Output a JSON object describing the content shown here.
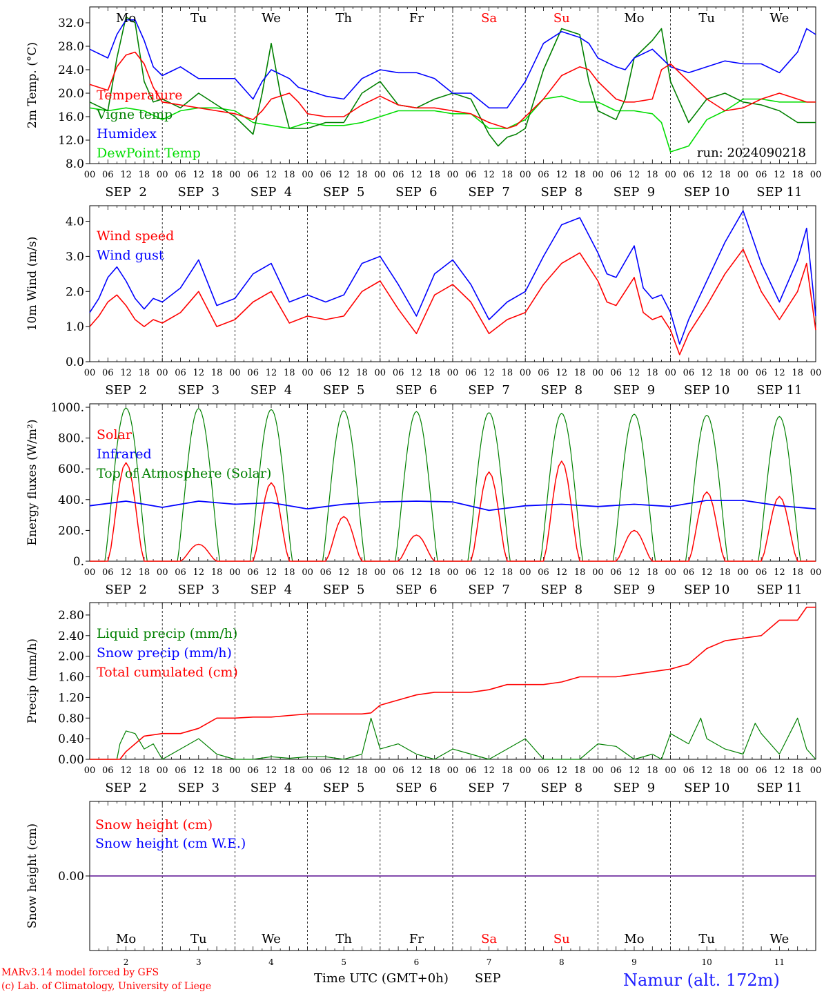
{
  "colors": {
    "temperature": "#ff0000",
    "vigne": "#008000",
    "humidex": "#0000ff",
    "dewpoint": "#00dd00",
    "solar": "#ff0000",
    "infrared": "#0000ff",
    "toa": "#008000",
    "liquid": "#008000",
    "snow": "#0000ff",
    "total": "#ff0000",
    "snow_height_line": "#7030a0",
    "weekend": "#ff0000",
    "location": "#2020ff"
  },
  "days": {
    "names": [
      "Mo",
      "Tu",
      "We",
      "Th",
      "Fr",
      "Sa",
      "Su",
      "Mo",
      "Tu",
      "We"
    ],
    "weekend_flags": [
      false,
      false,
      false,
      false,
      false,
      true,
      true,
      false,
      false,
      false
    ],
    "dates": [
      "SEP  2",
      "SEP  3",
      "SEP  4",
      "SEP  5",
      "SEP  6",
      "SEP  7",
      "SEP  8",
      "SEP  9",
      "SEP 10",
      "SEP 11"
    ],
    "numbers": [
      "2",
      "3",
      "4",
      "5",
      "6",
      "7",
      "8",
      "9",
      "10",
      "11"
    ],
    "hour_labels": [
      "00",
      "06",
      "12",
      "18"
    ],
    "end_label": "00"
  },
  "footer": {
    "model": "MARv3.14 model forced by GFS",
    "lab": "(c) Lab. of Climatology, University of Liege",
    "axis": "Time UTC (GMT+0h)",
    "month": "SEP",
    "location": "Namur (alt. 172m)"
  },
  "chart_data": [
    {
      "type": "line",
      "ylabel": "2m Temp. (°C)",
      "ylim": [
        8,
        34
      ],
      "yticks": [
        "8.0",
        "12.0",
        "16.0",
        "20.0",
        "24.0",
        "28.0",
        "32.0"
      ],
      "annotation": "run: 2024090218",
      "x_unit": "hours since SEP 2 00 UTC",
      "series": [
        {
          "name": "Temperature",
          "x": [
            0,
            6,
            9,
            12,
            15,
            18,
            21,
            24,
            30,
            36,
            42,
            48,
            54,
            57,
            60,
            66,
            69,
            72,
            78,
            84,
            90,
            96,
            102,
            108,
            114,
            120,
            126,
            132,
            138,
            141,
            144,
            150,
            156,
            162,
            165,
            168,
            174,
            177,
            180,
            186,
            189,
            192,
            198,
            204,
            210,
            216,
            222,
            228,
            234,
            237,
            240
          ],
          "y": [
            21.5,
            20.5,
            24.5,
            26.5,
            27,
            25,
            21,
            18.5,
            18,
            17.5,
            17,
            16.5,
            15.5,
            17,
            19,
            20,
            18.5,
            16.5,
            16,
            16,
            18,
            19.5,
            18,
            17.5,
            17.5,
            17,
            16.5,
            15,
            14,
            14.5,
            16,
            19,
            23,
            24.5,
            24,
            22,
            19,
            18.5,
            18.5,
            19,
            24,
            25,
            22,
            19,
            17,
            17.5,
            19,
            20,
            19,
            18.5,
            18.5
          ]
        },
        {
          "name": "Vigne temp",
          "x": [
            0,
            6,
            9,
            12,
            15,
            18,
            21,
            24,
            30,
            36,
            42,
            48,
            54,
            57,
            60,
            63,
            66,
            72,
            78,
            84,
            90,
            96,
            102,
            108,
            114,
            120,
            126,
            132,
            135,
            138,
            141,
            144,
            150,
            156,
            162,
            165,
            168,
            174,
            177,
            180,
            186,
            189,
            192,
            198,
            204,
            210,
            216,
            222,
            228,
            234,
            237,
            240
          ],
          "y": [
            18.5,
            17,
            26,
            33,
            32,
            22,
            18.5,
            19,
            17.5,
            20,
            18,
            16,
            13,
            20,
            28.5,
            20,
            14,
            14,
            15,
            15,
            20,
            22,
            18,
            17.5,
            19,
            20,
            19,
            13,
            11,
            12.5,
            13,
            14,
            24,
            31,
            30,
            22,
            17,
            15.5,
            19,
            26,
            29,
            31,
            22,
            15,
            19,
            20,
            18.5,
            18,
            17,
            15,
            15,
            15
          ]
        },
        {
          "name": "Humidex",
          "x": [
            0,
            6,
            9,
            12,
            15,
            18,
            21,
            24,
            30,
            36,
            42,
            48,
            54,
            57,
            60,
            66,
            69,
            72,
            78,
            84,
            90,
            96,
            102,
            108,
            114,
            120,
            126,
            132,
            135,
            138,
            144,
            150,
            156,
            162,
            165,
            168,
            174,
            177,
            180,
            186,
            189,
            192,
            198,
            204,
            210,
            216,
            222,
            228,
            234,
            237,
            240
          ],
          "y": [
            27.5,
            26,
            30,
            32.5,
            32.5,
            29,
            24.5,
            23,
            24.5,
            22.5,
            22.5,
            22.5,
            19,
            22,
            24,
            22.5,
            21,
            20.5,
            19.5,
            19,
            22.5,
            24,
            23.5,
            23.5,
            22.5,
            20,
            20,
            17.5,
            17.5,
            17.5,
            22,
            28.5,
            30.5,
            29.5,
            28.5,
            26,
            24.5,
            24,
            26,
            27.5,
            26,
            24.5,
            23.5,
            24.5,
            25.5,
            25,
            25,
            23.5,
            27,
            31,
            30
          ]
        },
        {
          "name": "DewPoint Temp",
          "x": [
            0,
            6,
            12,
            18,
            24,
            30,
            36,
            42,
            48,
            54,
            60,
            66,
            72,
            78,
            84,
            90,
            96,
            102,
            108,
            114,
            120,
            126,
            132,
            138,
            144,
            150,
            156,
            162,
            168,
            174,
            180,
            186,
            189,
            192,
            195,
            198,
            204,
            210,
            216,
            222,
            228,
            234,
            240
          ],
          "y": [
            17.5,
            17,
            17.5,
            17,
            15.5,
            17,
            17.5,
            17.5,
            17,
            15,
            14.5,
            14,
            15,
            14.5,
            14.5,
            15,
            16,
            17,
            17,
            17,
            16.5,
            16.5,
            14,
            14,
            15.5,
            19,
            19.5,
            18.5,
            18.5,
            17,
            17,
            16.5,
            15,
            10,
            10.5,
            11,
            15.5,
            17,
            19,
            19,
            18.5,
            18.5,
            18.5
          ]
        }
      ]
    },
    {
      "type": "line",
      "ylabel": "10m Wind (m/s)",
      "ylim": [
        0,
        4.6
      ],
      "yticks": [
        "0.0",
        "1.0",
        "2.0",
        "3.0",
        "4.0"
      ],
      "x_unit": "hours since SEP 2 00 UTC",
      "series": [
        {
          "name": "Wind speed",
          "x": [
            0,
            3,
            6,
            9,
            12,
            15,
            18,
            21,
            24,
            30,
            36,
            42,
            48,
            54,
            60,
            66,
            72,
            78,
            84,
            90,
            96,
            102,
            108,
            114,
            120,
            126,
            132,
            138,
            144,
            150,
            156,
            162,
            168,
            171,
            174,
            180,
            183,
            186,
            189,
            192,
            195,
            198,
            204,
            210,
            216,
            222,
            228,
            234,
            237,
            240
          ],
          "y": [
            1.0,
            1.3,
            1.7,
            1.9,
            1.6,
            1.2,
            1.0,
            1.2,
            1.1,
            1.4,
            2.0,
            1.0,
            1.2,
            1.7,
            2.0,
            1.1,
            1.3,
            1.2,
            1.3,
            2.0,
            2.3,
            1.5,
            0.8,
            1.9,
            2.2,
            1.7,
            0.8,
            1.2,
            1.4,
            2.2,
            2.8,
            3.1,
            2.3,
            1.7,
            1.6,
            2.4,
            1.4,
            1.2,
            1.3,
            0.9,
            0.2,
            0.8,
            1.6,
            2.5,
            3.2,
            2.0,
            1.2,
            2.0,
            2.8,
            0.9
          ]
        },
        {
          "name": "Wind gust",
          "x": [
            0,
            3,
            6,
            9,
            12,
            15,
            18,
            21,
            24,
            30,
            36,
            42,
            48,
            54,
            60,
            66,
            72,
            78,
            84,
            90,
            96,
            102,
            108,
            114,
            120,
            126,
            132,
            138,
            144,
            150,
            156,
            162,
            168,
            171,
            174,
            180,
            183,
            186,
            189,
            192,
            195,
            198,
            204,
            210,
            216,
            222,
            228,
            234,
            237,
            240
          ],
          "y": [
            1.4,
            1.8,
            2.4,
            2.7,
            2.3,
            1.8,
            1.5,
            1.8,
            1.7,
            2.1,
            2.9,
            1.6,
            1.8,
            2.5,
            2.8,
            1.7,
            1.9,
            1.7,
            1.9,
            2.8,
            3.0,
            2.2,
            1.3,
            2.5,
            2.9,
            2.2,
            1.2,
            1.7,
            2.0,
            3.0,
            3.9,
            4.1,
            3.1,
            2.5,
            2.4,
            3.3,
            2.1,
            1.8,
            1.9,
            1.4,
            0.5,
            1.2,
            2.3,
            3.4,
            4.3,
            2.8,
            1.7,
            2.9,
            3.8,
            1.3
          ]
        }
      ]
    },
    {
      "type": "line",
      "ylabel": "Energy fluxes (W/m²)",
      "ylim": [
        0,
        1000
      ],
      "yticks": [
        "0.",
        "200.",
        "400.",
        "600.",
        "800.",
        "1000."
      ],
      "x_unit": "hours since SEP 2 00 UTC",
      "series": [
        {
          "name": "Solar",
          "peaks": [
            640,
            110,
            510,
            290,
            170,
            580,
            650,
            200,
            450,
            420
          ]
        },
        {
          "name": "Infrared",
          "x": [
            0,
            12,
            24,
            36,
            48,
            60,
            72,
            84,
            96,
            108,
            120,
            132,
            144,
            156,
            168,
            180,
            192,
            204,
            216,
            228,
            240
          ],
          "y": [
            360,
            390,
            350,
            390,
            370,
            380,
            340,
            370,
            385,
            390,
            385,
            330,
            360,
            370,
            355,
            370,
            355,
            395,
            395,
            360,
            340
          ]
        },
        {
          "name": "Top of Atmosphere (Solar)",
          "peaks": [
            995,
            992,
            985,
            978,
            972,
            965,
            960,
            955,
            948,
            940
          ]
        }
      ]
    },
    {
      "type": "line",
      "ylabel": "Precip (mm/h)",
      "ylim": [
        0,
        3.0
      ],
      "yticks": [
        "0.00",
        "0.40",
        "0.80",
        "1.20",
        "1.60",
        "2.00",
        "2.40",
        "2.80"
      ],
      "x_unit": "hours since SEP 2 00 UTC",
      "series": [
        {
          "name": "Liquid precip (mm/h)",
          "x": [
            0,
            9,
            10,
            12,
            15,
            18,
            21,
            24,
            30,
            36,
            42,
            48,
            54,
            60,
            66,
            72,
            78,
            84,
            90,
            93,
            96,
            102,
            108,
            111,
            114,
            120,
            126,
            132,
            138,
            144,
            150,
            156,
            162,
            168,
            174,
            180,
            186,
            189,
            192,
            198,
            202,
            204,
            210,
            216,
            220,
            222,
            228,
            234,
            237,
            240
          ],
          "y": [
            0,
            0,
            0.3,
            0.55,
            0.5,
            0.2,
            0.3,
            0,
            0.2,
            0.4,
            0.1,
            0,
            0,
            0.05,
            0.02,
            0.05,
            0.05,
            0,
            0.1,
            0.8,
            0.2,
            0.3,
            0.1,
            0.05,
            0,
            0.2,
            0.1,
            0,
            0.2,
            0.4,
            0,
            0,
            0,
            0.3,
            0.25,
            0,
            0.1,
            0,
            0.5,
            0.3,
            0.8,
            0.4,
            0.2,
            0.1,
            0.7,
            0.5,
            0.1,
            0.8,
            0.2,
            0
          ]
        },
        {
          "name": "Snow precip (mm/h)",
          "x": [
            0,
            240
          ],
          "y": [
            0,
            0
          ]
        },
        {
          "name": "Total cumulated (cm)",
          "x": [
            0,
            10,
            12,
            18,
            24,
            30,
            36,
            42,
            48,
            54,
            60,
            66,
            72,
            78,
            84,
            90,
            93,
            96,
            102,
            108,
            114,
            120,
            126,
            132,
            138,
            144,
            150,
            156,
            162,
            168,
            174,
            180,
            186,
            192,
            198,
            204,
            210,
            216,
            222,
            228,
            234,
            237,
            240
          ],
          "y": [
            0,
            0,
            0.15,
            0.45,
            0.5,
            0.5,
            0.6,
            0.8,
            0.8,
            0.82,
            0.82,
            0.85,
            0.88,
            0.88,
            0.88,
            0.88,
            0.9,
            1.05,
            1.15,
            1.25,
            1.3,
            1.3,
            1.3,
            1.35,
            1.45,
            1.45,
            1.45,
            1.5,
            1.6,
            1.6,
            1.6,
            1.65,
            1.7,
            1.75,
            1.85,
            2.15,
            2.3,
            2.35,
            2.4,
            2.7,
            2.7,
            2.95,
            2.95
          ]
        }
      ]
    },
    {
      "type": "line",
      "ylabel": "Snow height (cm)",
      "ylim": [
        -1,
        1
      ],
      "yticks": [
        "0.00"
      ],
      "x_unit": "hours since SEP 2 00 UTC",
      "series": [
        {
          "name": "Snow height (cm)",
          "x": [
            0,
            240
          ],
          "y": [
            0,
            0
          ]
        },
        {
          "name": "Snow height (cm W.E.)",
          "x": [
            0,
            240
          ],
          "y": [
            0,
            0
          ]
        }
      ]
    }
  ]
}
